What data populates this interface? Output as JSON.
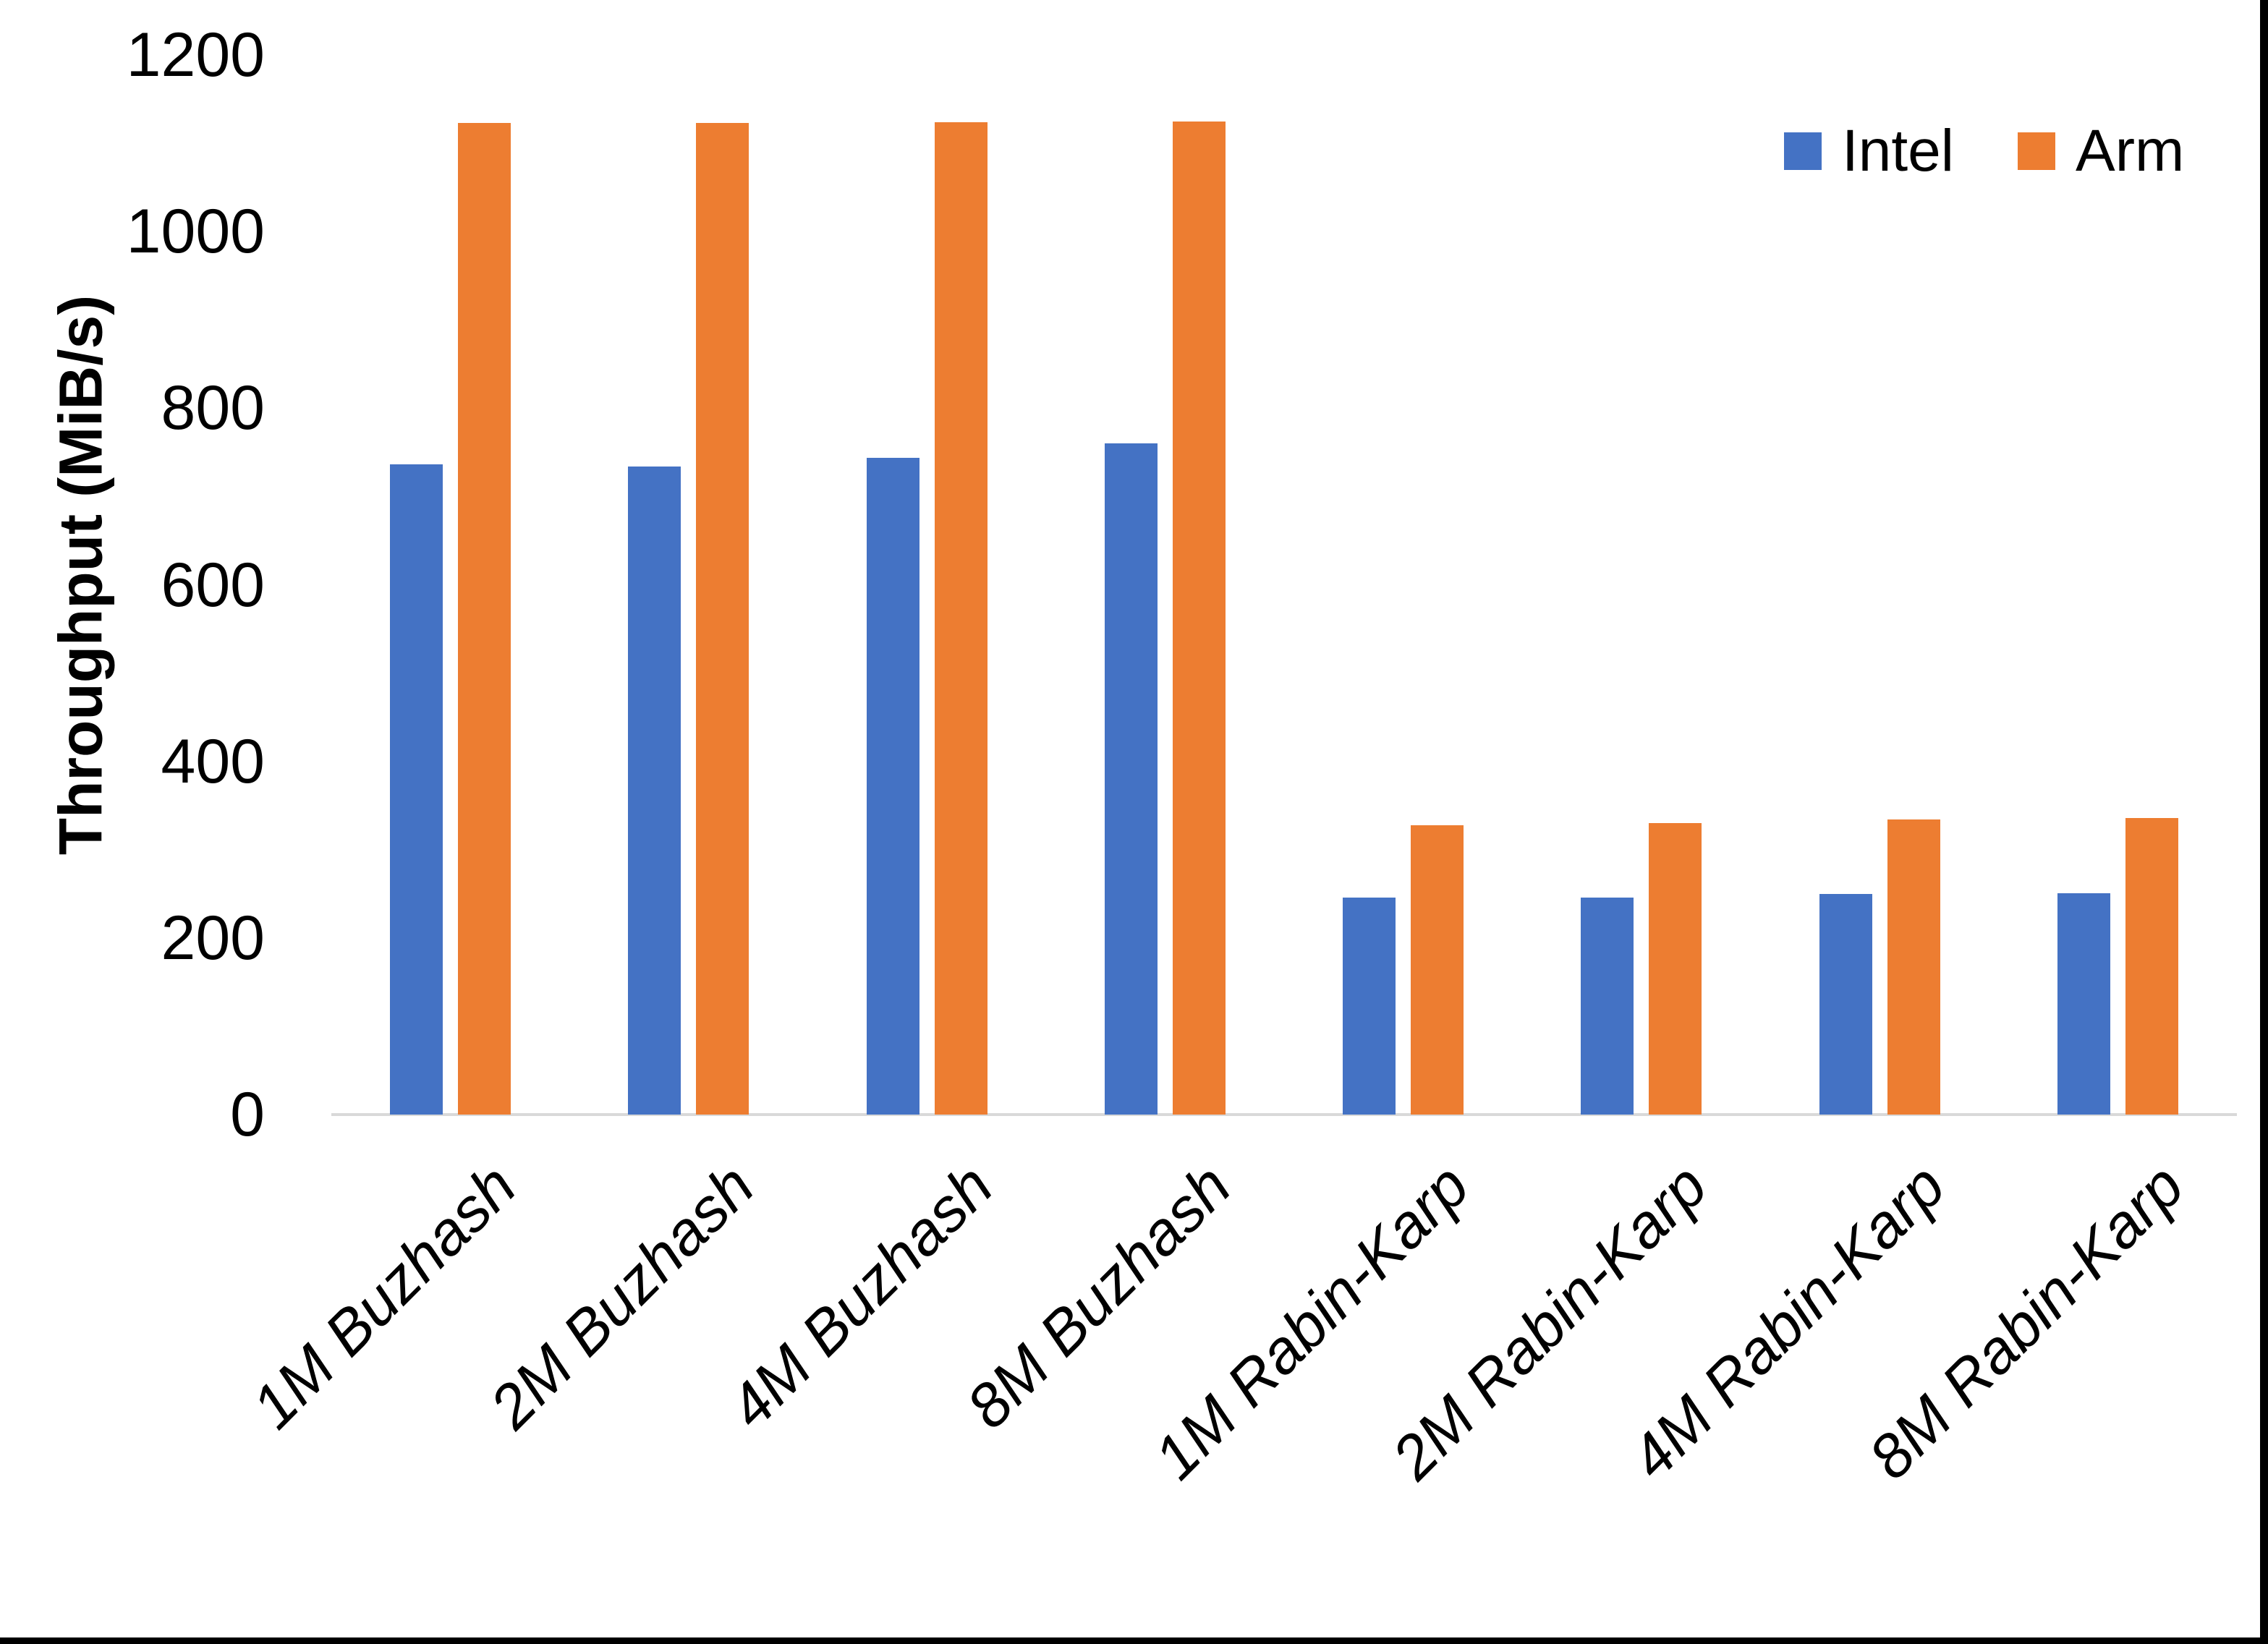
{
  "chart_data": {
    "type": "bar",
    "title": "",
    "categories": [
      "1M Buzhash",
      "2M Buzhash",
      "4M Buzhash",
      "8M Buzhash",
      "1M Rabin-Karp",
      "2M Rabin-Karp",
      "4M Rabin-Karp",
      "8M Rabin-Karp"
    ],
    "series": [
      {
        "name": "Intel",
        "color": "#4472C4",
        "values": [
          736,
          734,
          744,
          760,
          246,
          246,
          250,
          251
        ]
      },
      {
        "name": "Arm",
        "color": "#ED7D31",
        "values": [
          1123,
          1123,
          1124,
          1125,
          328,
          330,
          334,
          336
        ]
      }
    ],
    "xlabel": "",
    "ylabel": "Throughput (MiB/s)",
    "ylim": [
      0,
      1200
    ],
    "yticks": [
      0,
      200,
      400,
      600,
      800,
      1000,
      1200
    ],
    "grid": false,
    "legend": {
      "position": "top-right",
      "entries": [
        "Intel",
        "Arm"
      ]
    }
  },
  "styles": {
    "bar_color_intel": "#4472C4",
    "bar_color_arm": "#ED7D31",
    "axis_line_color": "#D9D9D9",
    "text_color": "#000000",
    "background": "#FFFFFF",
    "frame_border_color": "#000000"
  }
}
